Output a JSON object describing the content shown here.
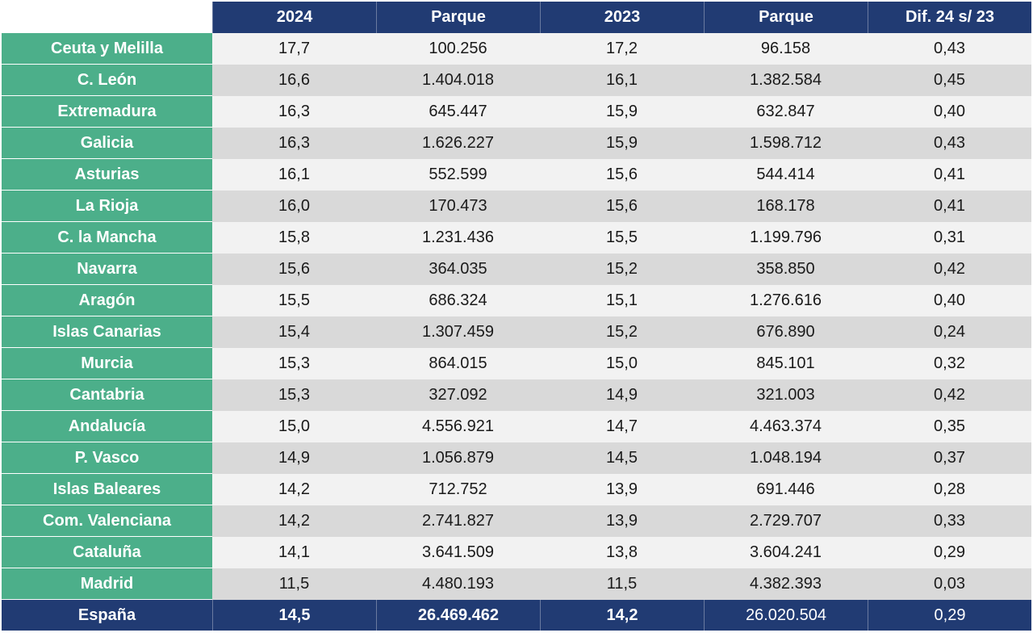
{
  "chart_data": {
    "type": "table",
    "columns": [
      "",
      "2024",
      "Parque",
      "2023",
      "Parque",
      "Dif. 24 s/ 23"
    ],
    "rows": [
      {
        "region": "Ceuta y Melilla",
        "age_2024": "17,7",
        "parque_2024": "100.256",
        "age_2023": "17,2",
        "parque_2023": "96.158",
        "dif": "0,43"
      },
      {
        "region": "C. León",
        "age_2024": "16,6",
        "parque_2024": "1.404.018",
        "age_2023": "16,1",
        "parque_2023": "1.382.584",
        "dif": "0,45"
      },
      {
        "region": "Extremadura",
        "age_2024": "16,3",
        "parque_2024": "645.447",
        "age_2023": "15,9",
        "parque_2023": "632.847",
        "dif": "0,40"
      },
      {
        "region": "Galicia",
        "age_2024": "16,3",
        "parque_2024": "1.626.227",
        "age_2023": "15,9",
        "parque_2023": "1.598.712",
        "dif": "0,43"
      },
      {
        "region": "Asturias",
        "age_2024": "16,1",
        "parque_2024": "552.599",
        "age_2023": "15,6",
        "parque_2023": "544.414",
        "dif": "0,41"
      },
      {
        "region": "La Rioja",
        "age_2024": "16,0",
        "parque_2024": "170.473",
        "age_2023": "15,6",
        "parque_2023": "168.178",
        "dif": "0,41"
      },
      {
        "region": "C. la Mancha",
        "age_2024": "15,8",
        "parque_2024": "1.231.436",
        "age_2023": "15,5",
        "parque_2023": "1.199.796",
        "dif": "0,31"
      },
      {
        "region": "Navarra",
        "age_2024": "15,6",
        "parque_2024": "364.035",
        "age_2023": "15,2",
        "parque_2023": "358.850",
        "dif": "0,42"
      },
      {
        "region": "Aragón",
        "age_2024": "15,5",
        "parque_2024": "686.324",
        "age_2023": "15,1",
        "parque_2023": "1.276.616",
        "dif": "0,40"
      },
      {
        "region": "Islas Canarias",
        "age_2024": "15,4",
        "parque_2024": "1.307.459",
        "age_2023": "15,2",
        "parque_2023": "676.890",
        "dif": "0,24"
      },
      {
        "region": "Murcia",
        "age_2024": "15,3",
        "parque_2024": "864.015",
        "age_2023": "15,0",
        "parque_2023": "845.101",
        "dif": "0,32"
      },
      {
        "region": "Cantabria",
        "age_2024": "15,3",
        "parque_2024": "327.092",
        "age_2023": "14,9",
        "parque_2023": "321.003",
        "dif": "0,42"
      },
      {
        "region": "Andalucía",
        "age_2024": "15,0",
        "parque_2024": "4.556.921",
        "age_2023": "14,7",
        "parque_2023": "4.463.374",
        "dif": "0,35"
      },
      {
        "region": "P. Vasco",
        "age_2024": "14,9",
        "parque_2024": "1.056.879",
        "age_2023": "14,5",
        "parque_2023": "1.048.194",
        "dif": "0,37"
      },
      {
        "region": "Islas Baleares",
        "age_2024": "14,2",
        "parque_2024": "712.752",
        "age_2023": "13,9",
        "parque_2023": "691.446",
        "dif": "0,28"
      },
      {
        "region": "Com. Valenciana",
        "age_2024": "14,2",
        "parque_2024": "2.741.827",
        "age_2023": "13,9",
        "parque_2023": "2.729.707",
        "dif": "0,33"
      },
      {
        "region": "Cataluña",
        "age_2024": "14,1",
        "parque_2024": "3.641.509",
        "age_2023": "13,8",
        "parque_2023": "3.604.241",
        "dif": "0,29"
      },
      {
        "region": "Madrid",
        "age_2024": "11,5",
        "parque_2024": "4.480.193",
        "age_2023": "11,5",
        "parque_2023": "4.382.393",
        "dif": "0,03"
      }
    ],
    "total": {
      "region": "España",
      "age_2024": "14,5",
      "parque_2024": "26.469.462",
      "age_2023": "14,2",
      "parque_2023": "26.020.504",
      "dif": "0,29"
    }
  },
  "colors": {
    "header_bg": "#213b73",
    "label_bg": "#4caf8a",
    "row_light": "#f2f2f2",
    "row_dark": "#d9d9d9"
  }
}
